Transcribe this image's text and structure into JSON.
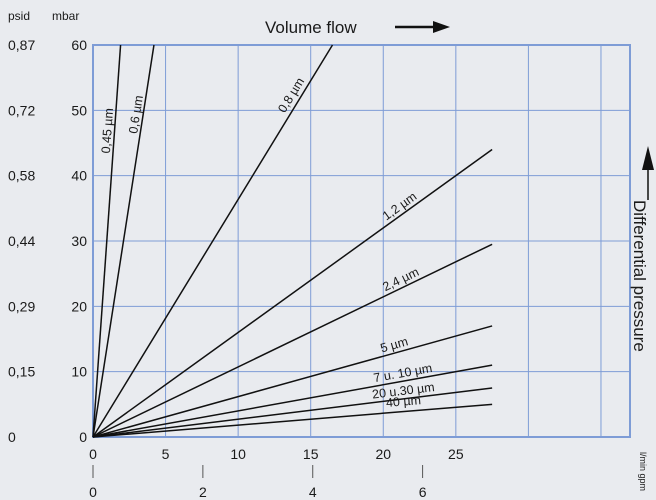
{
  "chart_data": {
    "type": "line",
    "title": "",
    "x_label": "Volume flow",
    "y_label": "Differential pressure",
    "y_units": {
      "left": "psid",
      "right": "mbar"
    },
    "x_ticks": [
      0,
      5,
      10,
      15,
      20,
      25
    ],
    "x_ticks_secondary": [
      0,
      2,
      4,
      6
    ],
    "x_secondary_unit": "l/min  gpm",
    "y_ticks_mbar": [
      0,
      10,
      20,
      30,
      40,
      50,
      60
    ],
    "y_ticks_psid": [
      "0",
      "0,15",
      "0,29",
      "0,44",
      "0,58",
      "0,72",
      "0,87"
    ],
    "xlim": [
      0,
      37
    ],
    "ylim": [
      0,
      60
    ],
    "grid": true,
    "series": [
      {
        "name": "0,45 µm",
        "points": [
          [
            0,
            0
          ],
          [
            1.9,
            60
          ]
        ]
      },
      {
        "name": "0,6 µm",
        "points": [
          [
            0,
            0
          ],
          [
            4.2,
            60
          ]
        ]
      },
      {
        "name": "0,8 µm",
        "points": [
          [
            0,
            0
          ],
          [
            16.5,
            60
          ]
        ]
      },
      {
        "name": "1,2 µm",
        "points": [
          [
            0,
            0
          ],
          [
            27.5,
            44
          ]
        ]
      },
      {
        "name": "2,4 µm",
        "points": [
          [
            0,
            0
          ],
          [
            27.5,
            29.5
          ]
        ]
      },
      {
        "name": "5 µm",
        "points": [
          [
            0,
            0
          ],
          [
            27.5,
            17
          ]
        ]
      },
      {
        "name": "7 u. 10 µm",
        "points": [
          [
            0,
            0
          ],
          [
            27.5,
            11
          ]
        ]
      },
      {
        "name": "20 u.30 µm",
        "points": [
          [
            0,
            0
          ],
          [
            27.5,
            7.5
          ]
        ]
      },
      {
        "name": "40 µm",
        "points": [
          [
            0,
            0
          ],
          [
            27.5,
            5
          ]
        ]
      }
    ],
    "colors": {
      "plot_bg": "#e9ebef",
      "grid": "#7e9cd6",
      "line": "#111111"
    }
  }
}
